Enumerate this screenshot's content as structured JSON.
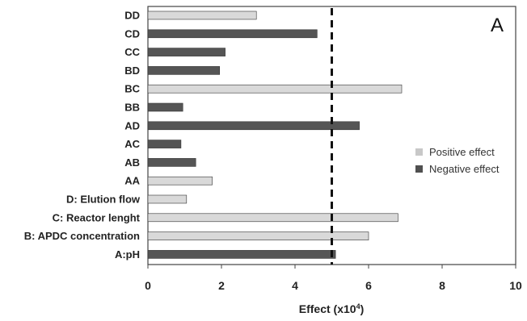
{
  "chart_data": {
    "type": "bar",
    "orientation": "horizontal",
    "panel_label": "A",
    "xlabel": "Effect (x10",
    "xlabel_sup": "4",
    "xlabel_suffix": ")",
    "ylabel": "",
    "xlim": [
      0,
      10
    ],
    "xticks": [
      "0",
      "2",
      "4",
      "6",
      "8",
      "10"
    ],
    "threshold": 5.0,
    "grid": false,
    "legend_position": "right",
    "categories": [
      "DD",
      "CD",
      "CC",
      "BD",
      "BC",
      "BB",
      "AD",
      "AC",
      "AB",
      "AA",
      "D: Elution flow",
      "C: Reactor lenght",
      "B: APDC concentration",
      "A:pH"
    ],
    "values": [
      2.95,
      4.6,
      2.1,
      1.95,
      6.9,
      0.95,
      5.75,
      0.9,
      1.3,
      1.75,
      1.05,
      6.8,
      6.0,
      5.1
    ],
    "effect_sign": [
      "positive",
      "negative",
      "negative",
      "negative",
      "positive",
      "negative",
      "negative",
      "negative",
      "negative",
      "positive",
      "positive",
      "positive",
      "positive",
      "negative"
    ],
    "legend": [
      {
        "key": "positive",
        "label": "Positive effect",
        "color": "#c8c8c8"
      },
      {
        "key": "negative",
        "label": "Negative effect",
        "color": "#505050"
      }
    ],
    "colors": {
      "positive": "#d9d9d9",
      "negative": "#555555"
    }
  }
}
